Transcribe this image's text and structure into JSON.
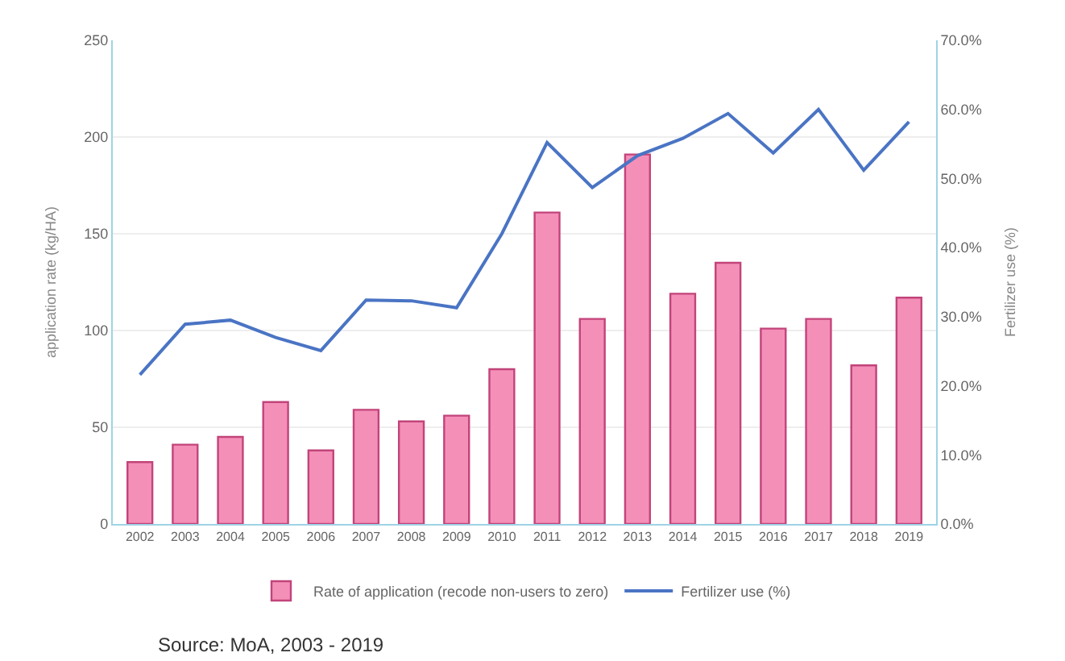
{
  "chart_data": {
    "type": "bar",
    "categories": [
      "2002",
      "2003",
      "2004",
      "2005",
      "2006",
      "2007",
      "2008",
      "2009",
      "2010",
      "2011",
      "2012",
      "2013",
      "2014",
      "2015",
      "2016",
      "2017",
      "2018",
      "2019"
    ],
    "ylabel": "application rate (kg/HA)",
    "y2label": "Fertilizer use (%)",
    "series": [
      {
        "name": "Rate of application (recode non-users to zero)",
        "color": "#f48fb8",
        "values": [
          32,
          41,
          45,
          63,
          38,
          59,
          53,
          56,
          80,
          161,
          106,
          191,
          119,
          135,
          101,
          106,
          82,
          117
        ]
      },
      {
        "name": "Fertilizer use (%)",
        "type": "line",
        "axis": "y2",
        "color": "#4a74c4",
        "values": [
          21.6,
          28.9,
          29.5,
          27.0,
          25.1,
          32.4,
          32.3,
          31.3,
          42.0,
          55.2,
          48.7,
          53.3,
          55.8,
          59.4,
          53.7,
          60.0,
          51.2,
          58.2
        ]
      }
    ],
    "ylim": [
      0,
      250
    ],
    "yticks": [
      0,
      50,
      100,
      150,
      200,
      250
    ],
    "y2lim": [
      0,
      70
    ],
    "y2ticks": [
      {
        "value": 0,
        "label": "0.0%"
      },
      {
        "value": 10,
        "label": "10.0%"
      },
      {
        "value": 20,
        "label": "20.0%"
      },
      {
        "value": 30,
        "label": "30.0%"
      },
      {
        "value": 40,
        "label": "40.0%"
      },
      {
        "value": 50,
        "label": "50.0%"
      },
      {
        "value": 60,
        "label": "60.0%"
      },
      {
        "value": 70,
        "label": "70.0%"
      }
    ],
    "grid": "y",
    "legend": "bottom",
    "marker": "none",
    "annotations": [
      "Source: MoA, 2003 - 2019"
    ]
  }
}
